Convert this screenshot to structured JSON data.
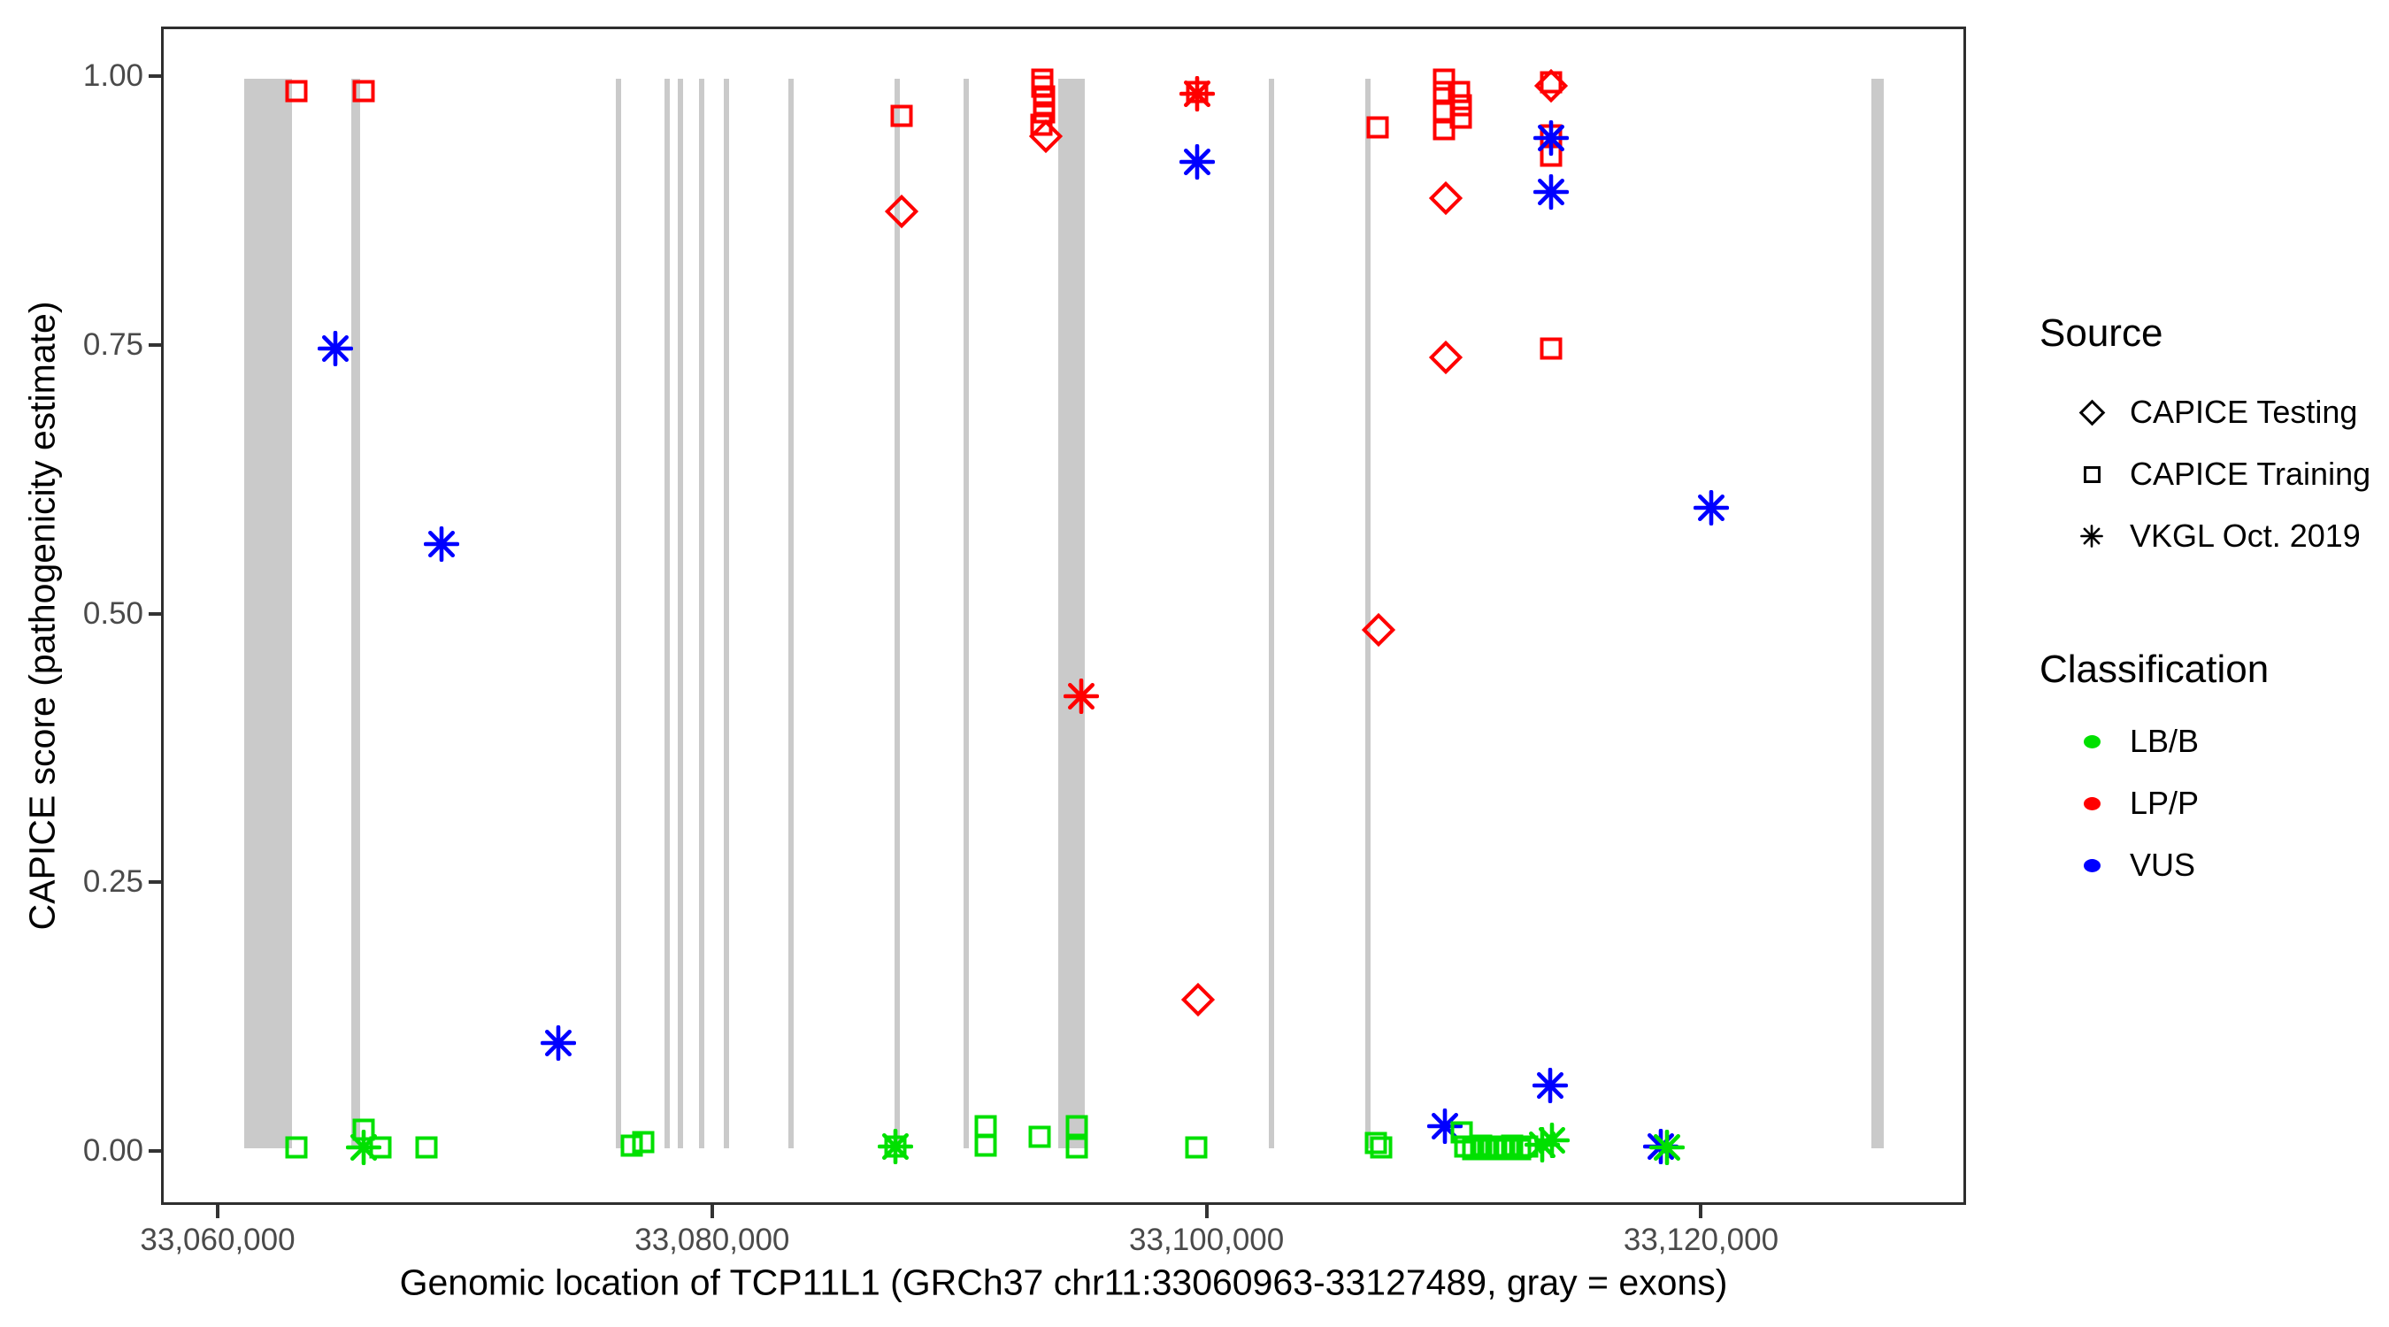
{
  "figure": {
    "background": "#FFFFFF",
    "panel_border_color": "#2e2e2e"
  },
  "chart_data": {
    "type": "scatter",
    "title": "",
    "xlabel": "Genomic location of TCP11L1 (GRCh37 chr11:33060963-33127489, gray = exons)",
    "ylabel": "CAPICE score (pathogenicity estimate)",
    "grid": "off",
    "legend_position": "right",
    "x_axis": {
      "range": [
        33057710,
        33130720
      ],
      "ticks": [
        {
          "value": 33060000,
          "label": "33,060,000"
        },
        {
          "value": 33080000,
          "label": "33,080,000"
        },
        {
          "value": 33100000,
          "label": "33,100,000"
        },
        {
          "value": 33120000,
          "label": "33,120,000"
        }
      ]
    },
    "y_axis": {
      "range": [
        -0.05,
        1.046
      ],
      "ticks": [
        {
          "value": 0.0,
          "label": "0.00"
        },
        {
          "value": 0.25,
          "label": "0.25"
        },
        {
          "value": 0.5,
          "label": "0.50"
        },
        {
          "value": 0.75,
          "label": "0.75"
        },
        {
          "value": 1.0,
          "label": "1.00"
        }
      ]
    },
    "exon_color": "#CACACA",
    "exon_score_band": [
      0,
      1
    ],
    "exons": [
      [
        33060963,
        33062900
      ],
      [
        33065330,
        33065690
      ],
      [
        33076070,
        33076280
      ],
      [
        33078040,
        33078250
      ],
      [
        33078580,
        33078790
      ],
      [
        33079440,
        33079650
      ],
      [
        33080440,
        33080660
      ],
      [
        33083050,
        33083270
      ],
      [
        33087350,
        33087560
      ],
      [
        33090170,
        33090390
      ],
      [
        33094000,
        33095080
      ],
      [
        33102560,
        33102770
      ],
      [
        33106460,
        33106670
      ],
      [
        33127000,
        33127489
      ]
    ],
    "classification_colors": {
      "LB/B": "#00E000",
      "LP/P": "#FF0000",
      "VUS": "#0000FF"
    },
    "shape_by_source": {
      "CAPICE Testing": "diamond",
      "CAPICE Training": "square",
      "VKGL Oct. 2019": "asterisk"
    },
    "points": [
      {
        "pos": 33063110,
        "score": 0.988,
        "source": "CAPICE Training",
        "classification": "LP/P"
      },
      {
        "pos": 33065830,
        "score": 0.988,
        "source": "CAPICE Training",
        "classification": "LP/P"
      },
      {
        "pos": 33087630,
        "score": 0.965,
        "source": "CAPICE Training",
        "classification": "LP/P"
      },
      {
        "pos": 33087630,
        "score": 0.876,
        "source": "CAPICE Testing",
        "classification": "LP/P"
      },
      {
        "pos": 33093360,
        "score": 0.999,
        "source": "CAPICE Training",
        "classification": "LP/P"
      },
      {
        "pos": 33093360,
        "score": 0.992,
        "source": "CAPICE Training",
        "classification": "LP/P"
      },
      {
        "pos": 33093430,
        "score": 0.983,
        "source": "CAPICE Training",
        "classification": "LP/P"
      },
      {
        "pos": 33093430,
        "score": 0.976,
        "source": "CAPICE Training",
        "classification": "LP/P"
      },
      {
        "pos": 33093430,
        "score": 0.968,
        "source": "CAPICE Training",
        "classification": "LP/P"
      },
      {
        "pos": 33093320,
        "score": 0.957,
        "source": "CAPICE Training",
        "classification": "LP/P"
      },
      {
        "pos": 33093500,
        "score": 0.946,
        "source": "CAPICE Testing",
        "classification": "LP/P"
      },
      {
        "pos": 33099620,
        "score": 0.987,
        "source": "CAPICE Training",
        "classification": "LP/P"
      },
      {
        "pos": 33099620,
        "score": 0.986,
        "source": "VKGL Oct. 2019",
        "classification": "LP/P"
      },
      {
        "pos": 33094930,
        "score": 0.423,
        "source": "VKGL Oct. 2019",
        "classification": "LP/P"
      },
      {
        "pos": 33099660,
        "score": 0.139,
        "source": "CAPICE Testing",
        "classification": "LP/P"
      },
      {
        "pos": 33106960,
        "score": 0.954,
        "source": "CAPICE Training",
        "classification": "LP/P"
      },
      {
        "pos": 33109640,
        "score": 0.999,
        "source": "CAPICE Training",
        "classification": "LP/P"
      },
      {
        "pos": 33109640,
        "score": 0.987,
        "source": "CAPICE Training",
        "classification": "LP/P"
      },
      {
        "pos": 33110250,
        "score": 0.987,
        "source": "CAPICE Training",
        "classification": "LP/P"
      },
      {
        "pos": 33110320,
        "score": 0.975,
        "source": "CAPICE Training",
        "classification": "LP/P"
      },
      {
        "pos": 33109640,
        "score": 0.968,
        "source": "CAPICE Training",
        "classification": "LP/P"
      },
      {
        "pos": 33110320,
        "score": 0.963,
        "source": "CAPICE Training",
        "classification": "LP/P"
      },
      {
        "pos": 33109640,
        "score": 0.953,
        "source": "CAPICE Training",
        "classification": "LP/P"
      },
      {
        "pos": 33109710,
        "score": 0.888,
        "source": "CAPICE Testing",
        "classification": "LP/P"
      },
      {
        "pos": 33109710,
        "score": 0.739,
        "source": "CAPICE Testing",
        "classification": "LP/P"
      },
      {
        "pos": 33106990,
        "score": 0.485,
        "source": "CAPICE Testing",
        "classification": "LP/P"
      },
      {
        "pos": 33114000,
        "score": 0.996,
        "source": "CAPICE Training",
        "classification": "LP/P"
      },
      {
        "pos": 33114000,
        "score": 0.993,
        "source": "CAPICE Testing",
        "classification": "LP/P"
      },
      {
        "pos": 33114000,
        "score": 0.947,
        "source": "CAPICE Training",
        "classification": "LP/P"
      },
      {
        "pos": 33114000,
        "score": 0.928,
        "source": "CAPICE Training",
        "classification": "LP/P"
      },
      {
        "pos": 33114000,
        "score": 0.748,
        "source": "CAPICE Training",
        "classification": "LP/P"
      },
      {
        "pos": 33064690,
        "score": 0.748,
        "source": "VKGL Oct. 2019",
        "classification": "VUS"
      },
      {
        "pos": 33068980,
        "score": 0.565,
        "source": "VKGL Oct. 2019",
        "classification": "VUS"
      },
      {
        "pos": 33073710,
        "score": 0.099,
        "source": "VKGL Oct. 2019",
        "classification": "VUS"
      },
      {
        "pos": 33099620,
        "score": 0.922,
        "source": "VKGL Oct. 2019",
        "classification": "VUS"
      },
      {
        "pos": 33114000,
        "score": 0.944,
        "source": "VKGL Oct. 2019",
        "classification": "VUS"
      },
      {
        "pos": 33114000,
        "score": 0.894,
        "source": "VKGL Oct. 2019",
        "classification": "VUS"
      },
      {
        "pos": 33109680,
        "score": 0.021,
        "source": "VKGL Oct. 2019",
        "classification": "VUS"
      },
      {
        "pos": 33113940,
        "score": 0.059,
        "source": "VKGL Oct. 2019",
        "classification": "VUS"
      },
      {
        "pos": 33120490,
        "score": 0.599,
        "source": "VKGL Oct. 2019",
        "classification": "VUS"
      },
      {
        "pos": 33118450,
        "score": 0.002,
        "source": "VKGL Oct. 2019",
        "classification": "VUS"
      },
      {
        "pos": 33063080,
        "score": 0.001,
        "source": "CAPICE Training",
        "classification": "LB/B"
      },
      {
        "pos": 33065810,
        "score": 0.018,
        "source": "CAPICE Training",
        "classification": "LB/B"
      },
      {
        "pos": 33065810,
        "score": 0.001,
        "source": "VKGL Oct. 2019",
        "classification": "LB/B"
      },
      {
        "pos": 33066510,
        "score": 0.001,
        "source": "CAPICE Training",
        "classification": "LB/B"
      },
      {
        "pos": 33068380,
        "score": 0.001,
        "source": "CAPICE Training",
        "classification": "LB/B"
      },
      {
        "pos": 33076710,
        "score": 0.003,
        "source": "CAPICE Training",
        "classification": "LB/B"
      },
      {
        "pos": 33077180,
        "score": 0.006,
        "source": "CAPICE Training",
        "classification": "LB/B"
      },
      {
        "pos": 33087400,
        "score": 0.002,
        "source": "VKGL Oct. 2019",
        "classification": "LB/B"
      },
      {
        "pos": 33087400,
        "score": 0.002,
        "source": "CAPICE Training",
        "classification": "LB/B"
      },
      {
        "pos": 33091070,
        "score": 0.021,
        "source": "CAPICE Training",
        "classification": "LB/B"
      },
      {
        "pos": 33091070,
        "score": 0.003,
        "source": "CAPICE Training",
        "classification": "LB/B"
      },
      {
        "pos": 33093250,
        "score": 0.011,
        "source": "CAPICE Training",
        "classification": "LB/B"
      },
      {
        "pos": 33094750,
        "score": 0.021,
        "source": "CAPICE Training",
        "classification": "LB/B"
      },
      {
        "pos": 33094750,
        "score": 0.001,
        "source": "CAPICE Training",
        "classification": "LB/B"
      },
      {
        "pos": 33099590,
        "score": 0.001,
        "source": "CAPICE Training",
        "classification": "LB/B"
      },
      {
        "pos": 33106890,
        "score": 0.005,
        "source": "CAPICE Training",
        "classification": "LB/B"
      },
      {
        "pos": 33107100,
        "score": 0.001,
        "source": "CAPICE Training",
        "classification": "LB/B"
      },
      {
        "pos": 33110360,
        "score": 0.015,
        "source": "CAPICE Training",
        "classification": "LB/B"
      },
      {
        "pos": 33110500,
        "score": 0.002,
        "source": "CAPICE Training",
        "classification": "LB/B"
      },
      {
        "pos": 33110820,
        "score": 0.0,
        "source": "CAPICE Training",
        "classification": "LB/B"
      },
      {
        "pos": 33111140,
        "score": 0.003,
        "source": "CAPICE Training",
        "classification": "LB/B"
      },
      {
        "pos": 33111460,
        "score": 0.0,
        "source": "CAPICE Training",
        "classification": "LB/B"
      },
      {
        "pos": 33111780,
        "score": 0.002,
        "source": "CAPICE Training",
        "classification": "LB/B"
      },
      {
        "pos": 33112100,
        "score": 0.0,
        "source": "CAPICE Training",
        "classification": "LB/B"
      },
      {
        "pos": 33112420,
        "score": 0.003,
        "source": "CAPICE Training",
        "classification": "LB/B"
      },
      {
        "pos": 33112740,
        "score": 0.0,
        "source": "CAPICE Training",
        "classification": "LB/B"
      },
      {
        "pos": 33113040,
        "score": 0.002,
        "source": "CAPICE Training",
        "classification": "LB/B"
      },
      {
        "pos": 33113650,
        "score": 0.004,
        "source": "VKGL Oct. 2019",
        "classification": "LB/B"
      },
      {
        "pos": 33114030,
        "score": 0.008,
        "source": "VKGL Oct. 2019",
        "classification": "LB/B"
      },
      {
        "pos": 33118700,
        "score": 0.001,
        "source": "VKGL Oct. 2019",
        "classification": "LB/B"
      }
    ]
  },
  "legend": {
    "source": {
      "title": "Source",
      "items": [
        {
          "label": "CAPICE Testing",
          "shape": "diamond"
        },
        {
          "label": "CAPICE Training",
          "shape": "square"
        },
        {
          "label": "VKGL Oct. 2019",
          "shape": "asterisk"
        }
      ]
    },
    "classification": {
      "title": "Classification",
      "items": [
        {
          "label": "LB/B",
          "color": "#00E000"
        },
        {
          "label": "LP/P",
          "color": "#FF0000"
        },
        {
          "label": "VUS",
          "color": "#0000FF"
        }
      ]
    }
  }
}
